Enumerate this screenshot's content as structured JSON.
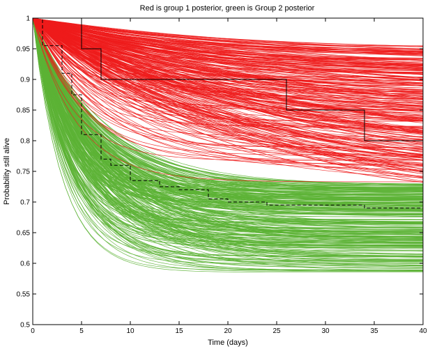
{
  "chart_data": {
    "type": "line",
    "title": "Red is group 1 posterior, green is Group 2 posterior",
    "xlabel": "Time (days)",
    "ylabel": "Probability still alive",
    "xlim": [
      0,
      40
    ],
    "ylim": [
      0.5,
      1
    ],
    "xticks": [
      0,
      5,
      10,
      15,
      20,
      25,
      30,
      35,
      40
    ],
    "yticks": [
      0.5,
      0.55,
      0.6,
      0.65,
      0.7,
      0.75,
      0.8,
      0.85,
      0.9,
      0.95,
      1
    ],
    "xtick_labels": [
      "0",
      "5",
      "10",
      "15",
      "20",
      "25",
      "30",
      "35",
      "40"
    ],
    "ytick_labels": [
      "0.5",
      "0.55",
      "0.6",
      "0.65",
      "0.7",
      "0.75",
      "0.8",
      "0.85",
      "0.9",
      "0.95",
      "1"
    ],
    "grid": false,
    "colors": {
      "group1": "#ee1c1c",
      "group2": "#5cb335",
      "empirical": "#000000"
    },
    "posterior_bands": [
      {
        "group": "group1",
        "color": "#ee1c1c",
        "count": 300,
        "end_value_range": [
          0.73,
          0.955
        ],
        "knee_time_range": [
          4,
          30
        ]
      },
      {
        "group": "group2",
        "color": "#5cb335",
        "count": 300,
        "end_value_range": [
          0.585,
          0.73
        ],
        "knee_time_range": [
          3,
          8
        ]
      }
    ],
    "series": [
      {
        "style": "solid",
        "color": "#000000",
        "x": [
          0,
          5,
          5,
          7,
          7,
          26,
          26,
          34,
          34,
          40
        ],
        "y": [
          1,
          1,
          0.95,
          0.95,
          0.9,
          0.9,
          0.85,
          0.85,
          0.8,
          0.8
        ]
      },
      {
        "style": "dashed",
        "color": "#000000",
        "x": [
          0,
          1,
          1,
          3,
          3,
          4,
          4,
          5,
          5,
          7,
          7,
          8,
          8,
          10,
          10,
          13,
          13,
          15,
          15,
          18,
          18,
          20,
          20,
          24,
          24,
          34,
          34,
          40
        ],
        "y": [
          1,
          1,
          0.955,
          0.955,
          0.91,
          0.91,
          0.875,
          0.875,
          0.81,
          0.81,
          0.77,
          0.77,
          0.76,
          0.76,
          0.735,
          0.735,
          0.725,
          0.725,
          0.72,
          0.72,
          0.705,
          0.705,
          0.7,
          0.7,
          0.695,
          0.695,
          0.69,
          0.69
        ]
      }
    ]
  }
}
